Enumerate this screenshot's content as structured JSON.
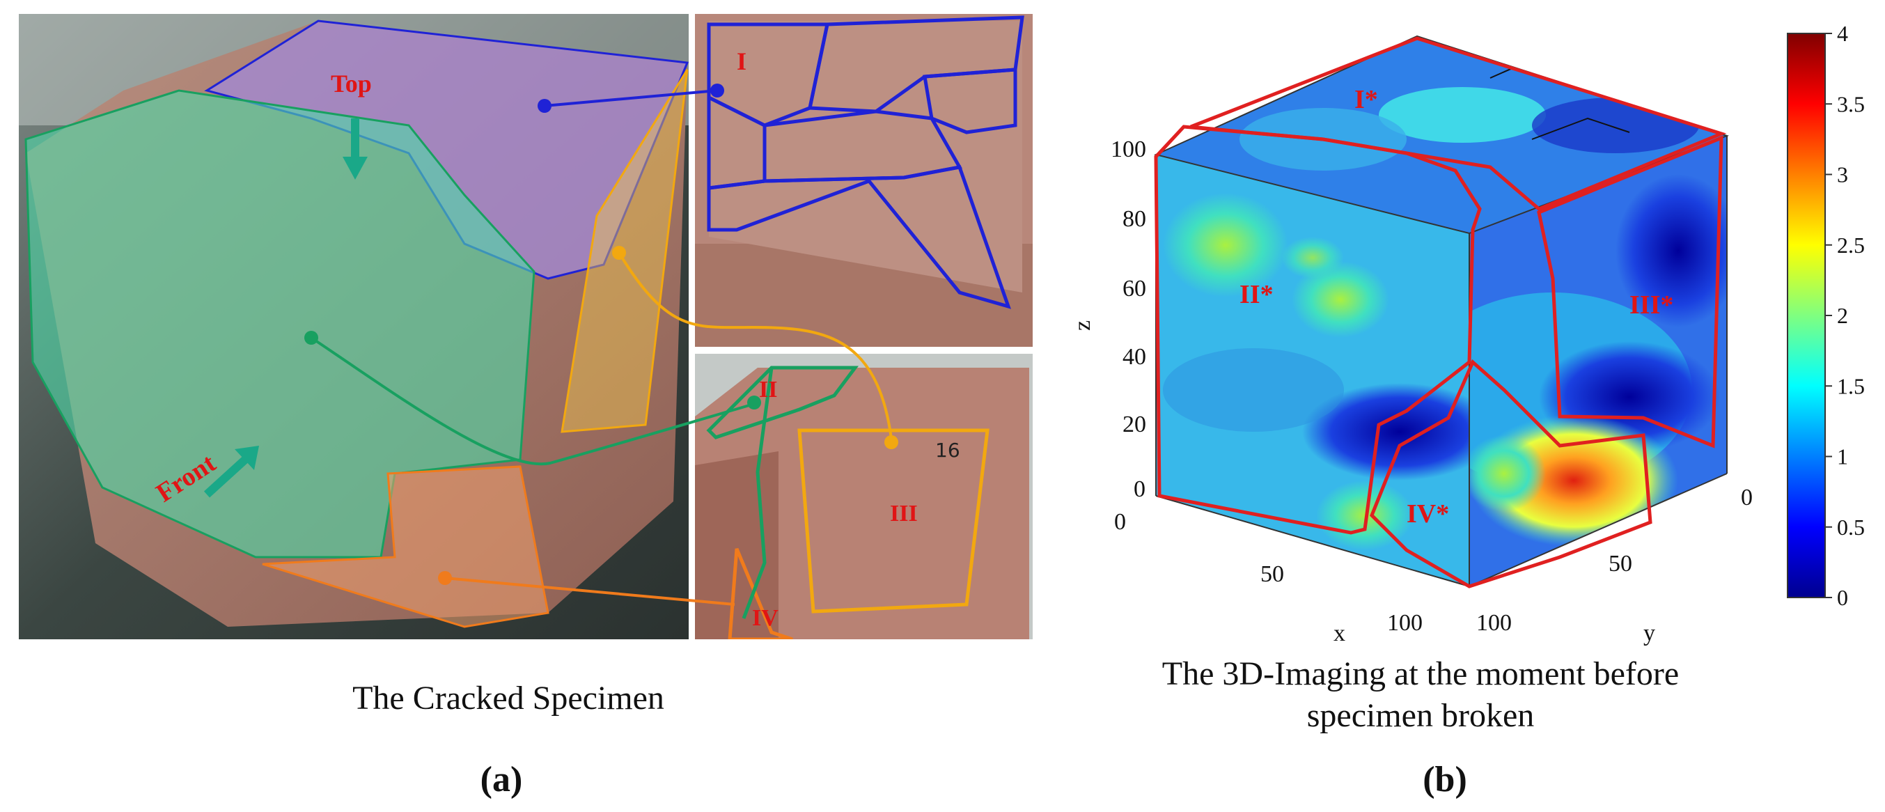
{
  "panel_a": {
    "caption": "The Cracked Specimen",
    "label": "(a)",
    "photo_labels": {
      "top": "Top",
      "front": "Front",
      "face_1": "I",
      "face_2": "II",
      "face_3": "III",
      "face_4": "IV"
    },
    "specimen_marks": {
      "mark_16": "16"
    },
    "colors": {
      "top_face": "#1f22d6",
      "front_face": "#18a060",
      "right_face": "#f2a810",
      "bottom_face": "#f07b1c",
      "label_red": "#e01515"
    }
  },
  "panel_b": {
    "caption_line1": "The 3D-Imaging at the moment before",
    "caption_line2": "specimen broken",
    "label": "(b)",
    "region_labels": {
      "r1": "I*",
      "r2": "II*",
      "r3": "III*",
      "r4": "IV*"
    },
    "axes": {
      "z_label": "z",
      "x_label": "x",
      "y_label": "y",
      "z_ticks": [
        "100",
        "80",
        "60",
        "40",
        "20",
        "0"
      ],
      "x_ticks": [
        "0",
        "50",
        "100"
      ],
      "y_ticks": [
        "100",
        "50",
        "0"
      ]
    },
    "colorbar": {
      "ticks": [
        "4",
        "3.5",
        "3",
        "2.5",
        "2",
        "1.5",
        "1",
        "0.5",
        "0"
      ],
      "range": [
        0,
        4
      ],
      "colormap": "jet"
    },
    "region_outline_color": "#e02020"
  }
}
